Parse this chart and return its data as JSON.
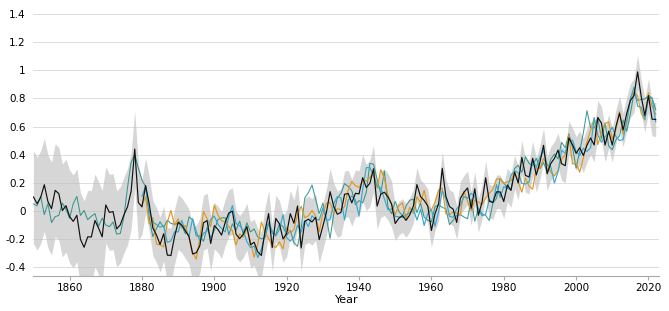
{
  "title": "",
  "xlabel": "Year",
  "ylabel": "",
  "xlim": [
    1850,
    2023
  ],
  "ylim": [
    -0.46,
    1.46
  ],
  "yticks": [
    -0.4,
    -0.2,
    0,
    0.2,
    0.4,
    0.6,
    0.8,
    1.0,
    1.2,
    1.4
  ],
  "xticks": [
    1860,
    1880,
    1900,
    1920,
    1940,
    1960,
    1980,
    2000,
    2020
  ],
  "background_color": "#ffffff",
  "gray_band_color": "#c0c0c0",
  "black_line_color": "#111111",
  "orange_line_color": "#e09820",
  "blue_line_color": "#38a8cc",
  "teal_line_color": "#1a8a80",
  "figwidth": 6.69,
  "figheight": 3.11,
  "dpi": 100
}
